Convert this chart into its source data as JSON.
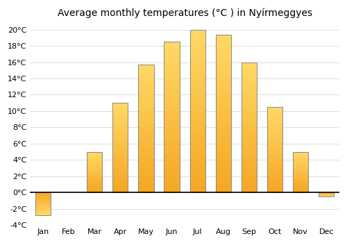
{
  "title": "Average monthly temperatures (°C ) in Nyírmeggyes",
  "months": [
    "Jan",
    "Feb",
    "Mar",
    "Apr",
    "May",
    "Jun",
    "Jul",
    "Aug",
    "Sep",
    "Oct",
    "Nov",
    "Dec"
  ],
  "temperatures": [
    -2.8,
    0.0,
    5.0,
    11.0,
    15.7,
    18.5,
    20.0,
    19.4,
    16.0,
    10.5,
    5.0,
    -0.5
  ],
  "bar_color_bottom": "#F5A623",
  "bar_color_top": "#FFD966",
  "bar_edge_color": "#888888",
  "ylim": [
    -4,
    21
  ],
  "yticks": [
    -4,
    -2,
    0,
    2,
    4,
    6,
    8,
    10,
    12,
    14,
    16,
    18,
    20
  ],
  "ytick_labels": [
    "-4°C",
    "-2°C",
    "0°C",
    "2°C",
    "4°C",
    "6°C",
    "8°C",
    "10°C",
    "12°C",
    "14°C",
    "16°C",
    "18°C",
    "20°C"
  ],
  "grid_color": "#dddddd",
  "background_color": "#ffffff",
  "title_fontsize": 10,
  "tick_fontsize": 8
}
